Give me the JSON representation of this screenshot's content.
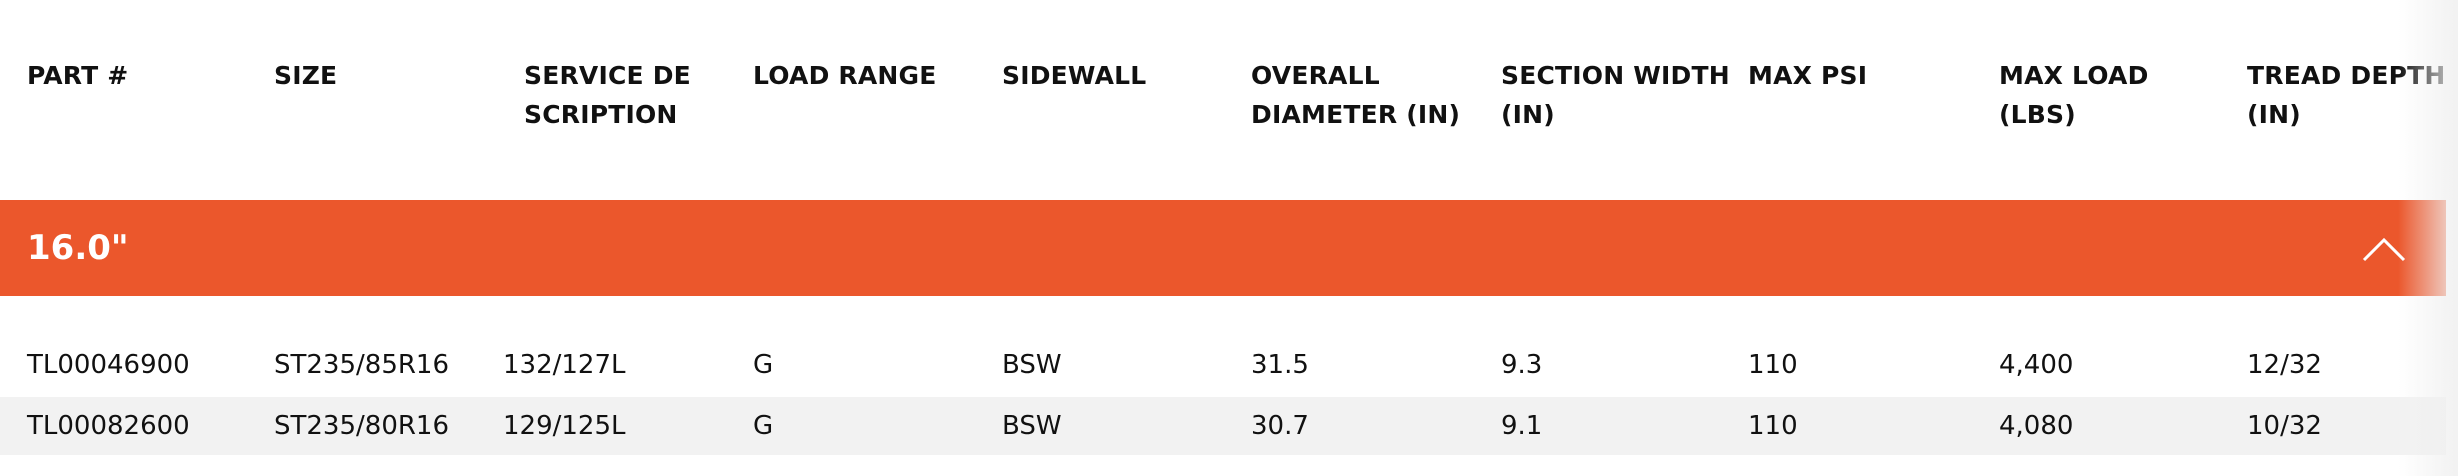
{
  "table": {
    "headers": [
      "PART #",
      "SIZE",
      "SERVICE DESCRIPTION",
      "LOAD RANGE",
      "SIDEWALL",
      "OVERALL DIAMETER (IN)",
      "SECTION WIDTH (IN)",
      "MAX PSI",
      "MAX LOAD (LBS)",
      "TREAD DEPTH (IN)"
    ],
    "group": "16.0\"",
    "rows": [
      [
        "TL00046900",
        "ST235/85R16",
        "132/127L",
        "G",
        "BSW",
        "31.5",
        "9.3",
        "110",
        "4,400",
        "12/32"
      ],
      [
        "TL00082600",
        "ST235/80R16",
        "129/125L",
        "G",
        "BSW",
        "30.7",
        "9.1",
        "110",
        "4,080",
        "10/32"
      ]
    ]
  }
}
